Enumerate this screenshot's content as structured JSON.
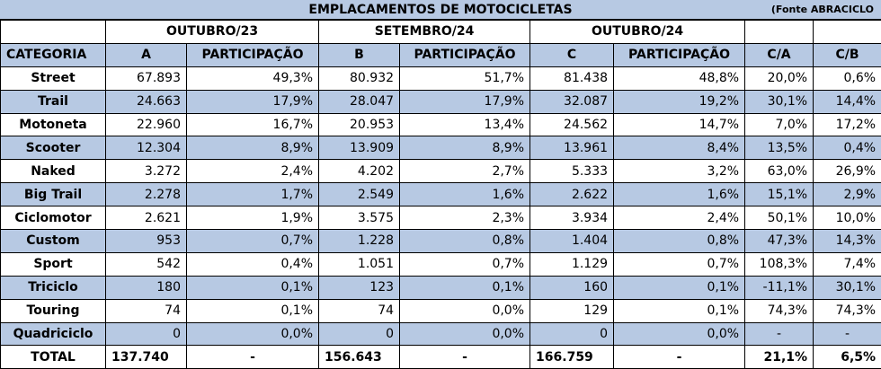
{
  "title": "EMPLACAMENTOS DE MOTOCICLETAS",
  "source": "(Fonte ABRACICLO",
  "periods": {
    "a": "OUTUBRO/23",
    "b": "SETEMBRO/24",
    "c": "OUTUBRO/24"
  },
  "headers": {
    "category": "CATEGORIA",
    "a": "A",
    "share": "PARTICIPAÇÃO",
    "b": "B",
    "c": "C",
    "ca": "C/A",
    "cb": "C/B"
  },
  "rows": [
    {
      "category": "Street",
      "a": "67.893",
      "a_share": "49,3%",
      "b": "80.932",
      "b_share": "51,7%",
      "c": "81.438",
      "c_share": "48,8%",
      "ca": "20,0%",
      "cb": "0,6%"
    },
    {
      "category": "Trail",
      "a": "24.663",
      "a_share": "17,9%",
      "b": "28.047",
      "b_share": "17,9%",
      "c": "32.087",
      "c_share": "19,2%",
      "ca": "30,1%",
      "cb": "14,4%"
    },
    {
      "category": "Motoneta",
      "a": "22.960",
      "a_share": "16,7%",
      "b": "20.953",
      "b_share": "13,4%",
      "c": "24.562",
      "c_share": "14,7%",
      "ca": "7,0%",
      "cb": "17,2%"
    },
    {
      "category": "Scooter",
      "a": "12.304",
      "a_share": "8,9%",
      "b": "13.909",
      "b_share": "8,9%",
      "c": "13.961",
      "c_share": "8,4%",
      "ca": "13,5%",
      "cb": "0,4%"
    },
    {
      "category": "Naked",
      "a": "3.272",
      "a_share": "2,4%",
      "b": "4.202",
      "b_share": "2,7%",
      "c": "5.333",
      "c_share": "3,2%",
      "ca": "63,0%",
      "cb": "26,9%"
    },
    {
      "category": "Big Trail",
      "a": "2.278",
      "a_share": "1,7%",
      "b": "2.549",
      "b_share": "1,6%",
      "c": "2.622",
      "c_share": "1,6%",
      "ca": "15,1%",
      "cb": "2,9%"
    },
    {
      "category": "Ciclomotor",
      "a": "2.621",
      "a_share": "1,9%",
      "b": "3.575",
      "b_share": "2,3%",
      "c": "3.934",
      "c_share": "2,4%",
      "ca": "50,1%",
      "cb": "10,0%"
    },
    {
      "category": "Custom",
      "a": "953",
      "a_share": "0,7%",
      "b": "1.228",
      "b_share": "0,8%",
      "c": "1.404",
      "c_share": "0,8%",
      "ca": "47,3%",
      "cb": "14,3%"
    },
    {
      "category": "Sport",
      "a": "542",
      "a_share": "0,4%",
      "b": "1.051",
      "b_share": "0,7%",
      "c": "1.129",
      "c_share": "0,7%",
      "ca": "108,3%",
      "cb": "7,4%"
    },
    {
      "category": "Triciclo",
      "a": "180",
      "a_share": "0,1%",
      "b": "123",
      "b_share": "0,1%",
      "c": "160",
      "c_share": "0,1%",
      "ca": "-11,1%",
      "cb": "30,1%"
    },
    {
      "category": "Touring",
      "a": "74",
      "a_share": "0,1%",
      "b": "74",
      "b_share": "0,0%",
      "c": "129",
      "c_share": "0,1%",
      "ca": "74,3%",
      "cb": "74,3%"
    },
    {
      "category": "Quadriciclo",
      "a": "0",
      "a_share": "0,0%",
      "b": "0",
      "b_share": "0,0%",
      "c": "0",
      "c_share": "0,0%",
      "ca": "-",
      "cb": "-"
    }
  ],
  "total": {
    "category": "TOTAL",
    "a": "137.740",
    "a_share": "-",
    "b": "156.643",
    "b_share": "-",
    "c": "166.759",
    "c_share": "-",
    "ca": "21,1%",
    "cb": "6,5%"
  },
  "colors": {
    "header_fill": "#b7c9e3",
    "border": "#000000"
  }
}
